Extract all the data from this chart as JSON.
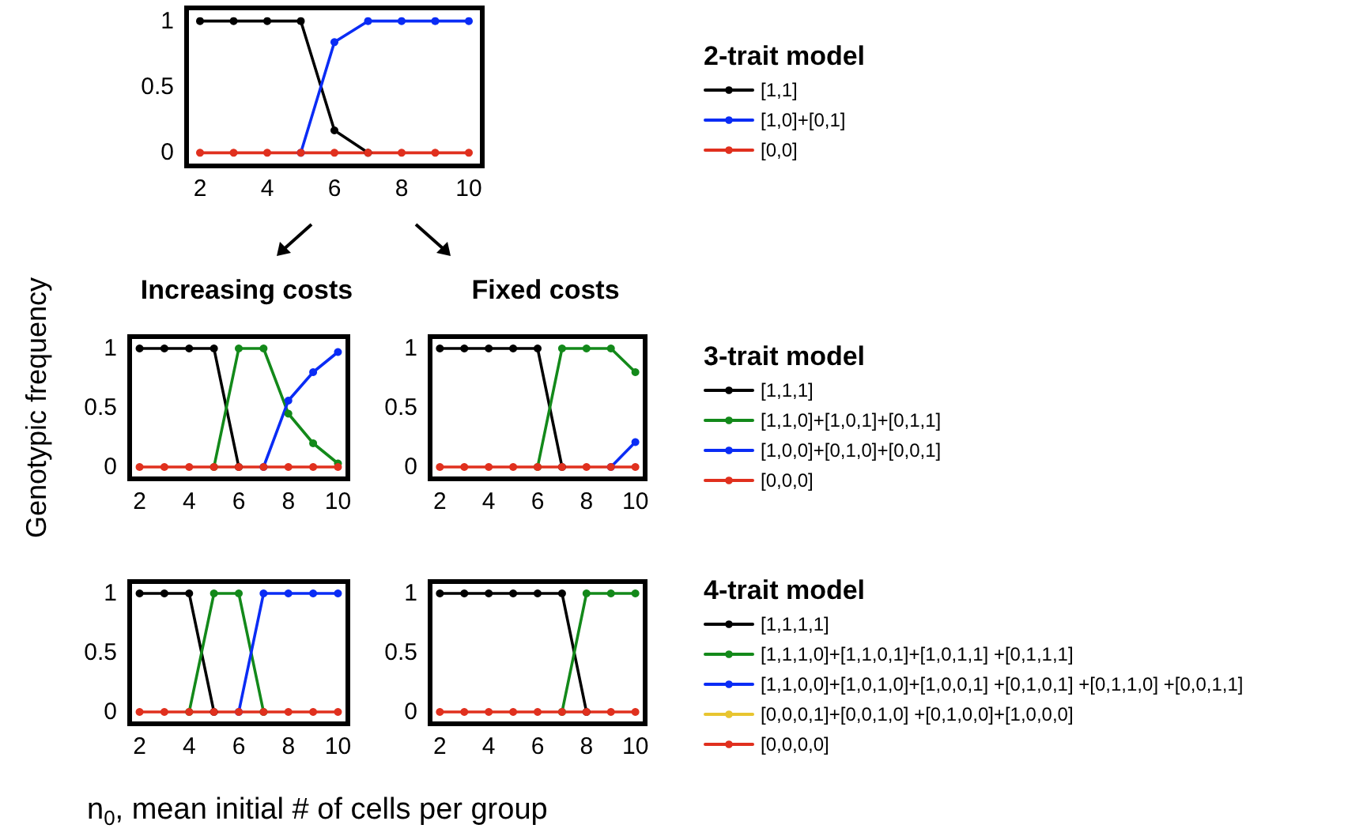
{
  "chart_data": [
    {
      "type": "line",
      "legend_title": "2-trait model",
      "x": [
        2,
        3,
        4,
        5,
        6,
        7,
        8,
        9,
        10
      ],
      "xlim": [
        1.6,
        10.4
      ],
      "xticks": [
        2,
        4,
        6,
        8,
        10
      ],
      "ylim": [
        -0.1,
        1.1
      ],
      "yticks": [
        0,
        0.5,
        1
      ],
      "marker": "circle",
      "legend": "right",
      "series": [
        {
          "name": "[1,1]",
          "color": "#000000",
          "values": [
            1,
            1,
            1,
            1,
            0.17,
            0,
            null,
            null,
            null
          ]
        },
        {
          "name": "[1,0]+[0,1]",
          "color": "#0a2cf5",
          "values": [
            null,
            null,
            null,
            0,
            0.84,
            1,
            1,
            1,
            1
          ]
        },
        {
          "name": "[0,0]",
          "color": "#e0301e",
          "values": [
            0,
            0,
            0,
            0,
            0,
            0,
            0,
            0,
            0
          ]
        }
      ]
    },
    {
      "type": "line",
      "title": "Increasing costs",
      "ylabel": "Genotypic frequency",
      "x": [
        2,
        3,
        4,
        5,
        6,
        7,
        8,
        9,
        10
      ],
      "xlim": [
        1.6,
        10.4
      ],
      "xticks": [
        2,
        4,
        6,
        8,
        10
      ],
      "ylim": [
        -0.1,
        1.1
      ],
      "yticks": [
        0,
        0.5,
        1
      ],
      "marker": "circle",
      "series": [
        {
          "color": "#000000",
          "values": [
            1,
            1,
            1,
            1,
            0,
            null,
            null,
            null,
            null
          ]
        },
        {
          "color": "#13891a",
          "values": [
            null,
            null,
            null,
            0,
            1,
            1,
            0.45,
            0.2,
            0.03
          ]
        },
        {
          "color": "#0a2cf5",
          "values": [
            null,
            null,
            null,
            null,
            null,
            0,
            0.56,
            0.8,
            0.97
          ]
        },
        {
          "color": "#e0301e",
          "values": [
            0,
            0,
            0,
            0,
            0,
            0,
            0,
            0,
            0
          ]
        }
      ]
    },
    {
      "type": "line",
      "title": "Fixed costs",
      "legend_title": "3-trait model",
      "x": [
        2,
        3,
        4,
        5,
        6,
        7,
        8,
        9,
        10
      ],
      "xlim": [
        1.6,
        10.4
      ],
      "xticks": [
        2,
        4,
        6,
        8,
        10
      ],
      "ylim": [
        -0.1,
        1.1
      ],
      "yticks": [
        0,
        0.5,
        1
      ],
      "marker": "circle",
      "legend": "right",
      "series": [
        {
          "name": "[1,1,1]",
          "color": "#000000",
          "values": [
            1,
            1,
            1,
            1,
            1,
            0,
            null,
            null,
            null
          ]
        },
        {
          "name": "[1,1,0]+[1,0,1]+[0,1,1]",
          "color": "#13891a",
          "values": [
            null,
            null,
            null,
            null,
            0,
            1,
            1,
            1,
            0.8
          ]
        },
        {
          "name": "[1,0,0]+[0,1,0]+[0,0,1]",
          "color": "#0a2cf5",
          "values": [
            null,
            null,
            null,
            null,
            null,
            null,
            null,
            0,
            0.21
          ]
        },
        {
          "name": "[0,0,0]",
          "color": "#e0301e",
          "values": [
            0,
            0,
            0,
            0,
            0,
            0,
            0,
            0,
            0
          ]
        }
      ]
    },
    {
      "type": "line",
      "xlabel": "n$_{0}$, mean initial # of cells per group",
      "x": [
        2,
        3,
        4,
        5,
        6,
        7,
        8,
        9,
        10
      ],
      "xlim": [
        1.6,
        10.4
      ],
      "xticks": [
        2,
        4,
        6,
        8,
        10
      ],
      "ylim": [
        -0.1,
        1.1
      ],
      "yticks": [
        0,
        0.5,
        1
      ],
      "marker": "circle",
      "series": [
        {
          "color": "#000000",
          "values": [
            1,
            1,
            1,
            0,
            null,
            null,
            null,
            null,
            null
          ]
        },
        {
          "color": "#13891a",
          "values": [
            null,
            null,
            0,
            1,
            1,
            0,
            null,
            null,
            null
          ]
        },
        {
          "color": "#0a2cf5",
          "values": [
            null,
            null,
            null,
            null,
            0,
            1,
            1,
            1,
            1
          ]
        },
        {
          "color": "#e8c530",
          "values": [
            null,
            null,
            null,
            null,
            null,
            null,
            null,
            null,
            null
          ]
        },
        {
          "color": "#e0301e",
          "values": [
            0,
            0,
            0,
            0,
            0,
            0,
            0,
            0,
            0
          ]
        }
      ]
    },
    {
      "type": "line",
      "legend_title": "4-trait model",
      "x": [
        2,
        3,
        4,
        5,
        6,
        7,
        8,
        9,
        10
      ],
      "xlim": [
        1.6,
        10.4
      ],
      "xticks": [
        2,
        4,
        6,
        8,
        10
      ],
      "ylim": [
        -0.1,
        1.1
      ],
      "yticks": [
        0,
        0.5,
        1
      ],
      "marker": "circle",
      "legend": "right",
      "series": [
        {
          "name": "[1,1,1,1]",
          "color": "#000000",
          "values": [
            1,
            1,
            1,
            1,
            1,
            1,
            0,
            null,
            null
          ]
        },
        {
          "name": "[1,1,1,0]+[1,1,0,1]+[1,0,1,1] +[0,1,1,1]",
          "color": "#13891a",
          "values": [
            null,
            null,
            null,
            null,
            null,
            0,
            1,
            1,
            1
          ]
        },
        {
          "name": "[1,1,0,0]+[1,0,1,0]+[1,0,0,1] +[0,1,0,1] +[0,1,1,0] +[0,0,1,1]",
          "color": "#0a2cf5",
          "values": [
            null,
            null,
            null,
            null,
            null,
            null,
            null,
            null,
            null
          ]
        },
        {
          "name": "[0,0,0,1]+[0,0,1,0] +[0,1,0,0]+[1,0,0,0]",
          "color": "#e8c530",
          "values": [
            null,
            null,
            null,
            null,
            null,
            null,
            null,
            null,
            null
          ]
        },
        {
          "name": "[0,0,0,0]",
          "color": "#e0301e",
          "values": [
            0,
            0,
            0,
            0,
            0,
            0,
            0,
            0,
            0
          ]
        }
      ]
    }
  ]
}
